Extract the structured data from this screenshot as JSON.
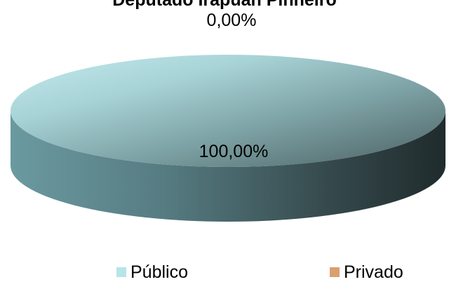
{
  "chart_data": {
    "type": "pie",
    "title": "Deputado Irapuan Pinheiro",
    "categories": [
      "Público",
      "Privado"
    ],
    "values": [
      100.0,
      0.0
    ],
    "data_labels": [
      "100,00%",
      "0,00%"
    ],
    "colors": [
      "#b8e4e8",
      "#d9a070"
    ],
    "style": "3d",
    "legend_position": "bottom"
  }
}
